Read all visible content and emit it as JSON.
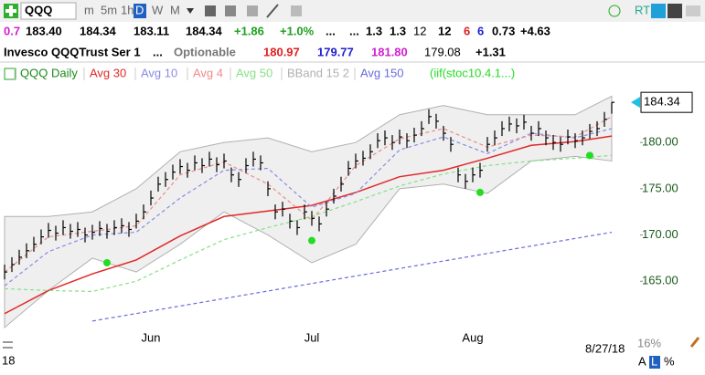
{
  "toolbar": {
    "symbol": "QQQ",
    "intervals": [
      "m",
      "5m",
      "1h",
      "D",
      "W",
      "M"
    ],
    "realtime": "RT"
  },
  "quote": {
    "row1": [
      "0.7",
      "183.40",
      "184.34",
      "183.11",
      "184.34",
      "+1.86",
      "+1.0%",
      "...",
      "...",
      "1.3",
      "1.3",
      "12",
      "12",
      "6",
      "6",
      "0.73",
      "+4.63"
    ],
    "row2": [
      "Invesco QQQTrust Ser 1",
      "...",
      "Optionable",
      "180.97",
      "179.77",
      "181.80",
      "179.08",
      "+1.31"
    ]
  },
  "chart_data": {
    "type": "ohlc",
    "price": {
      "name": "QQQ Daily",
      "color": "#000000",
      "high": [
        166.8,
        167.6,
        168.4,
        169.1,
        169.8,
        170.6,
        171.3,
        171.0,
        171.6,
        171.2,
        171.4,
        170.8,
        171.1,
        171.5,
        171.2,
        171.6,
        171.8,
        171.4,
        172.3,
        173.3,
        174.8,
        176.3,
        176.8,
        177.6,
        178.2,
        177.8,
        178.6,
        178.3,
        179.0,
        178.4,
        178.8,
        177.3,
        176.8,
        178.3,
        179.0,
        178.6,
        175.8,
        173.3,
        173.6,
        172.3,
        171.6,
        173.3,
        172.6,
        172.0,
        173.6,
        175.0,
        176.3,
        178.0,
        178.8,
        179.1,
        179.8,
        181.0,
        181.3,
        180.8,
        181.4,
        181.0,
        181.6,
        182.3,
        183.6,
        183.1,
        181.8,
        180.6,
        177.3,
        176.6,
        177.3,
        177.8,
        180.6,
        181.3,
        182.3,
        182.8,
        182.6,
        183.0,
        181.8,
        182.3,
        181.3,
        180.8,
        180.6,
        181.4,
        181.0,
        181.3,
        182.0,
        182.3,
        183.3,
        184.34
      ],
      "low": [
        165.2,
        166.0,
        166.8,
        167.5,
        168.2,
        169.0,
        169.7,
        169.4,
        170.0,
        169.6,
        169.8,
        169.2,
        169.5,
        169.9,
        169.6,
        170.0,
        170.2,
        169.8,
        170.7,
        171.7,
        173.2,
        174.7,
        175.2,
        176.0,
        176.6,
        176.2,
        177.0,
        176.7,
        177.4,
        176.8,
        177.2,
        175.7,
        175.2,
        176.7,
        177.4,
        177.0,
        174.2,
        171.7,
        172.0,
        170.7,
        170.0,
        171.7,
        171.0,
        170.4,
        172.0,
        173.4,
        174.7,
        176.4,
        177.2,
        177.5,
        178.2,
        179.4,
        179.7,
        179.2,
        179.8,
        179.4,
        180.0,
        180.7,
        182.0,
        181.5,
        180.2,
        179.0,
        175.7,
        175.0,
        175.7,
        176.2,
        179.0,
        179.7,
        180.7,
        181.2,
        181.0,
        181.4,
        180.2,
        180.7,
        179.7,
        179.2,
        179.0,
        179.8,
        179.4,
        179.7,
        180.4,
        180.7,
        181.7,
        183.11
      ],
      "close": [
        166.0,
        166.8,
        167.6,
        168.3,
        169.0,
        169.8,
        170.5,
        170.2,
        170.8,
        170.4,
        170.6,
        170.0,
        170.3,
        170.7,
        170.4,
        170.8,
        171.0,
        170.6,
        171.5,
        172.5,
        174.0,
        175.5,
        176.0,
        176.8,
        177.4,
        177.0,
        177.8,
        177.5,
        178.2,
        177.6,
        178.0,
        176.5,
        176.0,
        177.5,
        178.2,
        177.8,
        175.0,
        172.5,
        172.8,
        171.5,
        170.8,
        172.5,
        171.8,
        171.2,
        172.8,
        174.2,
        175.5,
        177.2,
        178.0,
        178.3,
        179.0,
        180.2,
        180.5,
        180.0,
        180.6,
        180.2,
        180.8,
        181.5,
        182.8,
        182.3,
        181.0,
        179.8,
        176.5,
        175.8,
        176.5,
        177.0,
        179.8,
        180.5,
        181.5,
        182.0,
        181.8,
        182.2,
        181.0,
        181.5,
        180.5,
        180.0,
        179.8,
        180.6,
        180.2,
        180.5,
        181.2,
        181.5,
        182.5,
        184.34
      ]
    },
    "series": [
      {
        "name": "Avg 30",
        "color": "#e02828",
        "dashed": false,
        "x": [
          0,
          6,
          12,
          18,
          24,
          30,
          36,
          42,
          48,
          54,
          60,
          66,
          72,
          78,
          83
        ],
        "values": [
          161.5,
          164.0,
          165.8,
          167.3,
          169.9,
          172.0,
          172.6,
          173.2,
          174.6,
          176.3,
          177.0,
          178.3,
          179.7,
          180.1,
          180.7
        ]
      },
      {
        "name": "Avg 10",
        "color": "#8a8ae6",
        "dashed": true,
        "x": [
          0,
          6,
          12,
          18,
          24,
          30,
          36,
          42,
          48,
          54,
          60,
          66,
          72,
          78,
          83
        ],
        "values": [
          164.5,
          168.2,
          170.0,
          170.3,
          174.0,
          177.0,
          177.2,
          173.0,
          174.5,
          179.2,
          180.6,
          178.8,
          181.0,
          180.5,
          181.5
        ]
      },
      {
        "name": "Avg 4",
        "color": "#f08a8a",
        "dashed": true,
        "x": [
          0,
          6,
          12,
          18,
          24,
          30,
          36,
          42,
          48,
          54,
          60,
          66,
          72,
          78,
          83
        ],
        "values": [
          166.0,
          169.8,
          170.4,
          171.0,
          176.5,
          177.9,
          175.5,
          171.6,
          177.5,
          180.4,
          181.5,
          179.5,
          180.8,
          180.6,
          182.8
        ]
      },
      {
        "name": "Avg 50",
        "color": "#86e086",
        "dashed": true,
        "x": [
          0,
          6,
          12,
          18,
          24,
          30,
          36,
          42,
          48,
          54,
          60,
          66,
          72,
          78,
          83
        ],
        "values": [
          164.2,
          164.0,
          163.9,
          165.0,
          167.3,
          169.5,
          170.8,
          172.0,
          173.6,
          175.3,
          176.6,
          177.5,
          178.0,
          178.3,
          178.6
        ]
      },
      {
        "name": "Avg 150",
        "color": "#6a6ae0",
        "dashed": true,
        "x": [
          12,
          83
        ],
        "values": [
          160.7,
          170.3
        ]
      }
    ],
    "band": {
      "name": "BBand 15 2",
      "color": "#b0b0b0",
      "x": [
        0,
        6,
        12,
        18,
        24,
        30,
        36,
        42,
        48,
        54,
        60,
        66,
        72,
        78,
        83
      ],
      "upper": [
        172,
        172,
        172.5,
        175,
        179,
        180,
        180.5,
        179,
        180,
        183,
        184,
        183,
        183,
        183,
        185
      ],
      "lower": [
        160,
        164,
        167.5,
        166,
        169,
        172.5,
        170,
        167,
        169,
        175,
        175.5,
        174.5,
        178,
        178.5,
        178
      ]
    },
    "signals": {
      "name": "(iif(stoc10.4.1...)",
      "color": "#22dd22",
      "x": [
        14,
        42,
        65,
        80
      ],
      "values": [
        167.0,
        169.4,
        174.6,
        178.6
      ]
    },
    "last_price": 184.34,
    "xlim": [
      -0.625,
      86.875
    ],
    "xticks": [
      {
        "value": 20,
        "label": "Jun"
      },
      {
        "value": 42,
        "label": "Jul"
      },
      {
        "value": 64,
        "label": "Aug"
      }
    ],
    "ylim": [
      159.7,
      188.5
    ],
    "yticks": [
      {
        "value": 165,
        "label": "165.00"
      },
      {
        "value": 170,
        "label": "170.00"
      },
      {
        "value": 175,
        "label": "175.00"
      },
      {
        "value": 180,
        "label": "180.00"
      }
    ],
    "date": "8/27/18"
  },
  "footer": {
    "year": "18",
    "zoom": "16%",
    "buttons": [
      "A",
      "L",
      "%"
    ]
  }
}
